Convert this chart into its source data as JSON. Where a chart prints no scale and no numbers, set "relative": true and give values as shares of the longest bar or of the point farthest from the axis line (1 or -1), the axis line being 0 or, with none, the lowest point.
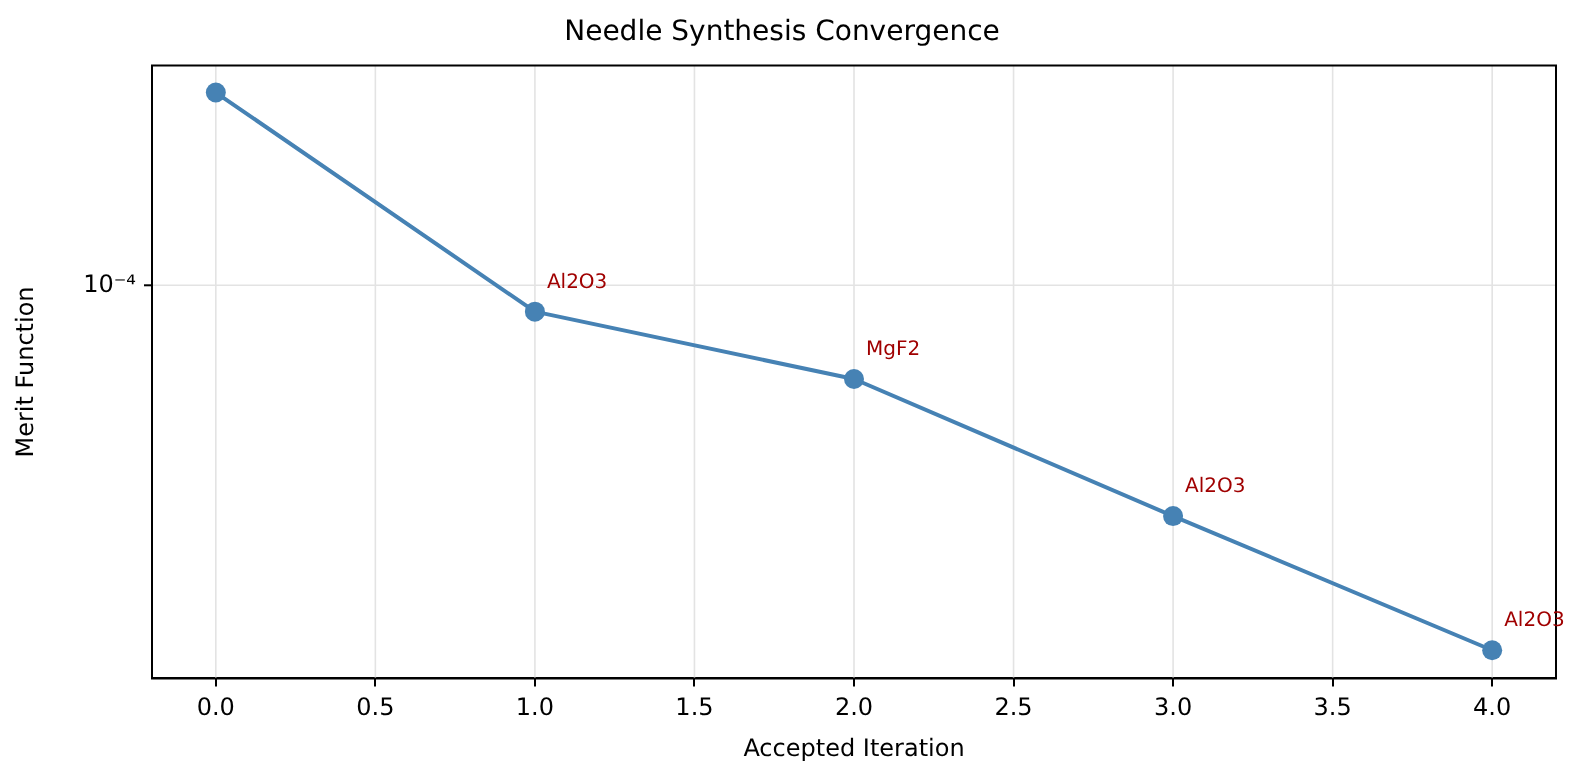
{
  "chart_data": {
    "type": "line",
    "title": "Needle Synthesis Convergence",
    "xlabel": "Accepted Iteration",
    "ylabel": "Merit Function",
    "x": [
      0,
      1,
      2,
      3,
      4
    ],
    "series": [
      {
        "color": "#4682b4",
        "values": [
          1,
          0.626,
          0.511,
          0.277,
          0.048
        ]
      }
    ],
    "relative": true,
    "grid": "x",
    "marker": "circle",
    "line_style": "solid",
    "ref_lines": [
      {
        "axis": "y",
        "value": 0.671,
        "label": "10⁻⁴",
        "color": "#e3e3e3"
      }
    ],
    "xlim": [
      -0.2,
      4.2
    ],
    "xticks": [
      {
        "value": 0,
        "label": "0.0"
      },
      {
        "value": 0.5,
        "label": "0.5"
      },
      {
        "value": 1,
        "label": "1.0"
      },
      {
        "value": 1.5,
        "label": "1.5"
      },
      {
        "value": 2,
        "label": "2.0"
      },
      {
        "value": 2.5,
        "label": "2.5"
      },
      {
        "value": 3,
        "label": "3.0"
      },
      {
        "value": 3.5,
        "label": "3.5"
      },
      {
        "value": 4,
        "label": "4.0"
      }
    ],
    "annotations": [
      {
        "text": "Al2O3",
        "x": 1,
        "y": 0.626
      },
      {
        "text": "MgF2",
        "x": 2,
        "y": 0.511
      },
      {
        "text": "Al2O3",
        "x": 3,
        "y": 0.277
      },
      {
        "text": "Al2O3",
        "x": 4,
        "y": 0.048
      }
    ]
  }
}
